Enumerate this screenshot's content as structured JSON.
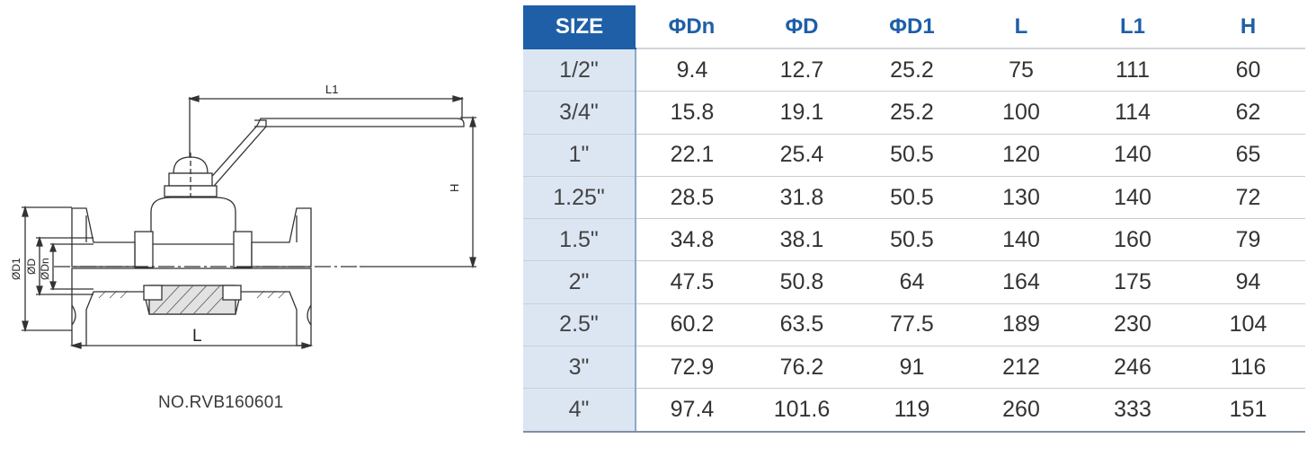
{
  "drawing": {
    "labels": {
      "l1": "L1",
      "h": "H",
      "l": "L",
      "d1": "ØD1",
      "d": "ØD",
      "dn": "ØDn"
    },
    "model_no": "NO.RVB160601"
  },
  "table": {
    "headers": [
      "SIZE",
      "ΦDn",
      "ΦD",
      "ΦD1",
      "L",
      "L1",
      "H"
    ],
    "rows": [
      [
        "1/2\"",
        "9.4",
        "12.7",
        "25.2",
        "75",
        "111",
        "60"
      ],
      [
        "3/4\"",
        "15.8",
        "19.1",
        "25.2",
        "100",
        "114",
        "62"
      ],
      [
        "1\"",
        "22.1",
        "25.4",
        "50.5",
        "120",
        "140",
        "65"
      ],
      [
        "1.25\"",
        "28.5",
        "31.8",
        "50.5",
        "130",
        "140",
        "72"
      ],
      [
        "1.5\"",
        "34.8",
        "38.1",
        "50.5",
        "140",
        "160",
        "79"
      ],
      [
        "2\"",
        "47.5",
        "50.8",
        "64",
        "164",
        "175",
        "94"
      ],
      [
        "2.5\"",
        "60.2",
        "63.5",
        "77.5",
        "189",
        "230",
        "104"
      ],
      [
        "3\"",
        "72.9",
        "76.2",
        "91",
        "212",
        "246",
        "116"
      ],
      [
        "4\"",
        "97.4",
        "101.6",
        "119",
        "260",
        "333",
        "151"
      ]
    ]
  },
  "colors": {
    "accent": "#1e5fa8",
    "size_column": "#dce6f3"
  }
}
